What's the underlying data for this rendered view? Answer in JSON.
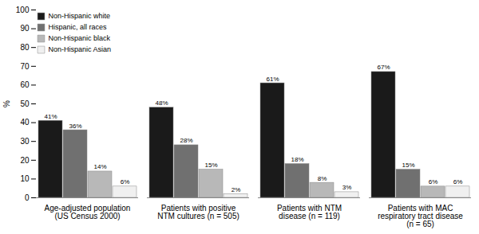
{
  "chart_data": {
    "type": "bar",
    "categories": [
      "Age-adjusted population\n(US Census 2000)",
      "Patients with positive\nNTM cultures (n = 505)",
      "Patients with NTM\ndisease (n = 119)",
      "Patients with MAC\nrespiratory tract disease\n(n = 65)"
    ],
    "series": [
      {
        "name": "Non-Hispanic white",
        "color": "#1a1a1a",
        "values": [
          41,
          48,
          61,
          67
        ],
        "value_labels": [
          "41%",
          "48%",
          "61%",
          "67%"
        ]
      },
      {
        "name": "Hispanic, all races",
        "color": "#707070",
        "values": [
          36,
          28,
          18,
          15
        ],
        "value_labels": [
          "36%",
          "28%",
          "18%",
          "15%"
        ]
      },
      {
        "name": "Non-Hispanic black",
        "color": "#b8b8b8",
        "values": [
          14,
          15,
          8,
          6
        ],
        "value_labels": [
          "14%",
          "15%",
          "8%",
          "6%"
        ]
      },
      {
        "name": "Non-Hispanic Asian",
        "color": "#f0f0f0",
        "values": [
          6,
          2,
          3,
          6
        ],
        "value_labels": [
          "6%",
          "2%",
          "3%",
          "6%"
        ]
      }
    ],
    "ylabel": "%",
    "ylim": [
      0,
      100
    ],
    "yticks": [
      0,
      10,
      20,
      30,
      40,
      50,
      60,
      70,
      80,
      90,
      100
    ],
    "grid": false,
    "legend": "upper left",
    "data_labels": true
  }
}
